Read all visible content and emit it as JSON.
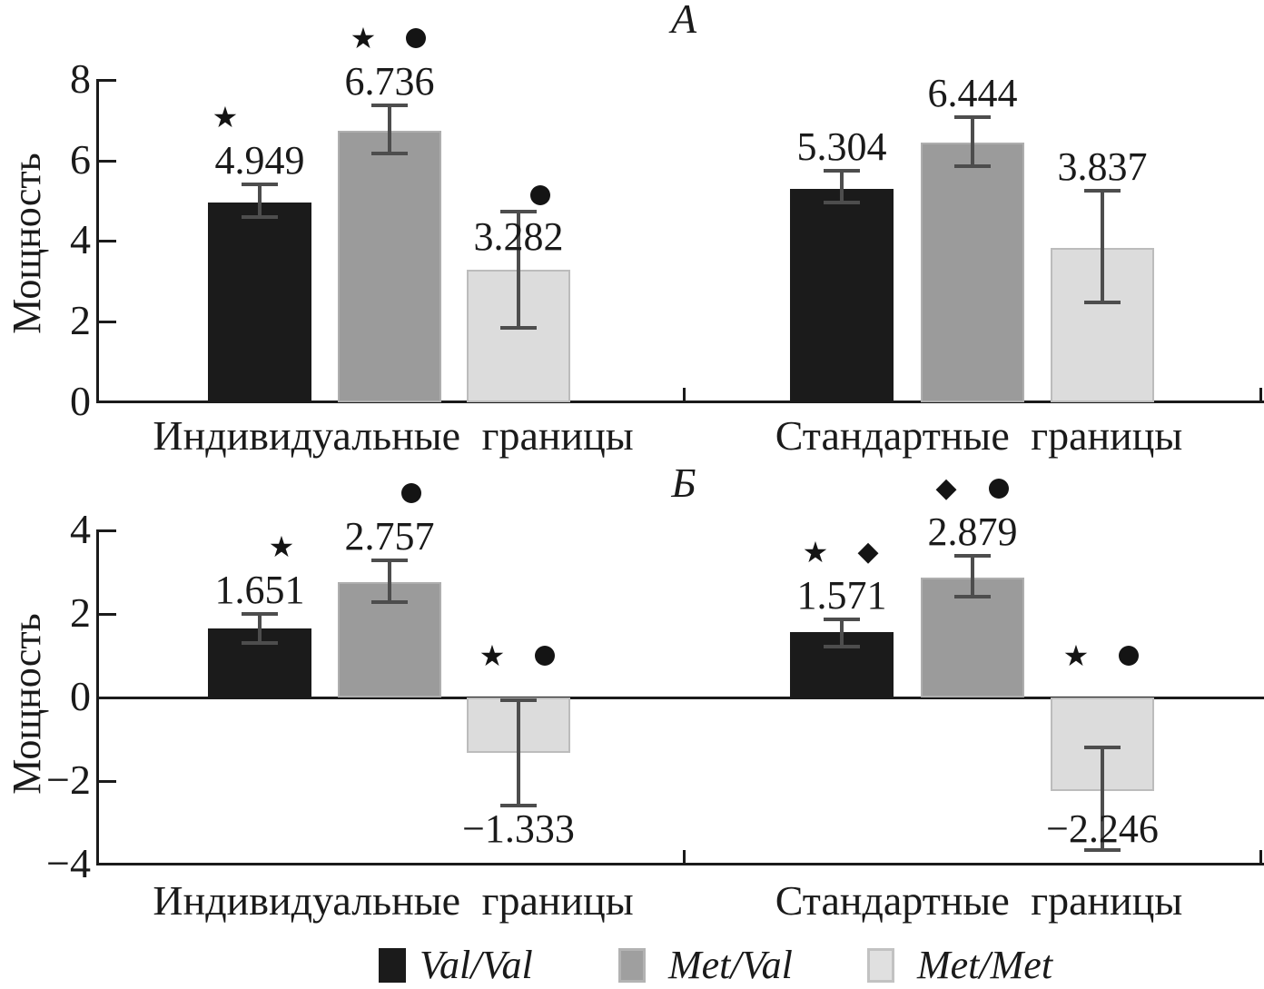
{
  "figure": {
    "colors": {
      "axis": "#1b1b1b",
      "error_bar": "#4d4d4d",
      "text": "#1a1a1a"
    },
    "legend": {
      "items": [
        {
          "label": "Val/Val",
          "color": "#1b1b1b",
          "border": "#1b1b1b",
          "icon": "black-square-swatch"
        },
        {
          "label": "Met/Val",
          "color": "#9f9f9f",
          "border": "#b3b3b3",
          "icon": "gray-square-swatch"
        },
        {
          "label": "Met/Met",
          "color": "#e0e0e0",
          "border": "#c2c2c2",
          "icon": "lightgray-square-swatch"
        }
      ]
    }
  },
  "chart_data": [
    {
      "panel": "A",
      "title": "А",
      "type": "bar",
      "ylabel": "Мощность",
      "xlabel": "",
      "ylim": [
        0,
        8
      ],
      "yticks": [
        "8",
        "6",
        "4",
        "2",
        "0"
      ],
      "ytick_values": [
        8,
        6,
        4,
        2,
        0
      ],
      "grid": false,
      "series_names": [
        "Val/Val",
        "Met/Val",
        "Met/Met"
      ],
      "groups": [
        {
          "category": "Индивидуальные границы",
          "bars": [
            {
              "series": "Val/Val",
              "value": 4.949,
              "label": "4.949",
              "err_plus": 0.45,
              "err_minus": 0.35,
              "symbols": [
                "star"
              ],
              "sym_dx": -38
            },
            {
              "series": "Met/Val",
              "value": 6.736,
              "label": "6.736",
              "err_plus": 0.62,
              "err_minus": 0.56,
              "symbols": [
                "star",
                "circle"
              ]
            },
            {
              "series": "Met/Met",
              "value": 3.282,
              "label": "3.282",
              "err_plus": 1.45,
              "err_minus": 1.43,
              "symbols": [
                "circle"
              ],
              "label_below_cap": true
            }
          ]
        },
        {
          "category": "Стандартные границы",
          "bars": [
            {
              "series": "Val/Val",
              "value": 5.304,
              "label": "5.304",
              "err_plus": 0.43,
              "err_minus": 0.35,
              "symbols": []
            },
            {
              "series": "Met/Val",
              "value": 6.444,
              "label": "6.444",
              "err_plus": 0.63,
              "err_minus": 0.58,
              "symbols": []
            },
            {
              "series": "Met/Met",
              "value": 3.837,
              "label": "3.837",
              "err_plus": 1.41,
              "err_minus": 1.36,
              "symbols": []
            }
          ]
        }
      ]
    },
    {
      "panel": "B",
      "title": "Б",
      "type": "bar",
      "ylabel": "Мощность",
      "xlabel": "",
      "ylim": [
        -4,
        4
      ],
      "yticks": [
        "4",
        "2",
        "0",
        "−2",
        "−4"
      ],
      "ytick_values": [
        4,
        2,
        0,
        -2,
        -4
      ],
      "grid": false,
      "series_names": [
        "Val/Val",
        "Met/Val",
        "Met/Met"
      ],
      "groups": [
        {
          "category": "Индивидуальные границы",
          "bars": [
            {
              "series": "Val/Val",
              "value": 1.651,
              "label": "1.651",
              "err_plus": 0.35,
              "err_minus": 0.35,
              "symbols": [
                "star"
              ]
            },
            {
              "series": "Met/Val",
              "value": 2.757,
              "label": "2.757",
              "err_plus": 0.52,
              "err_minus": 0.48,
              "symbols": [
                "circle"
              ]
            },
            {
              "series": "Met/Met",
              "value": -1.333,
              "label": "−1.333",
              "err_plus": 1.26,
              "err_minus": 1.26,
              "symbols": [
                "star",
                "circle"
              ]
            }
          ]
        },
        {
          "category": "Стандартные границы",
          "bars": [
            {
              "series": "Val/Val",
              "value": 1.571,
              "label": "1.571",
              "err_plus": 0.3,
              "err_minus": 0.35,
              "symbols": [
                "star",
                "diamond"
              ]
            },
            {
              "series": "Met/Val",
              "value": 2.879,
              "label": "2.879",
              "err_plus": 0.51,
              "err_minus": 0.47,
              "symbols": [
                "diamond",
                "circle"
              ]
            },
            {
              "series": "Met/Met",
              "value": -2.246,
              "label": "−2.246",
              "err_plus": 1.05,
              "err_minus": 1.4,
              "symbols": [
                "star",
                "circle"
              ]
            }
          ]
        }
      ]
    }
  ]
}
